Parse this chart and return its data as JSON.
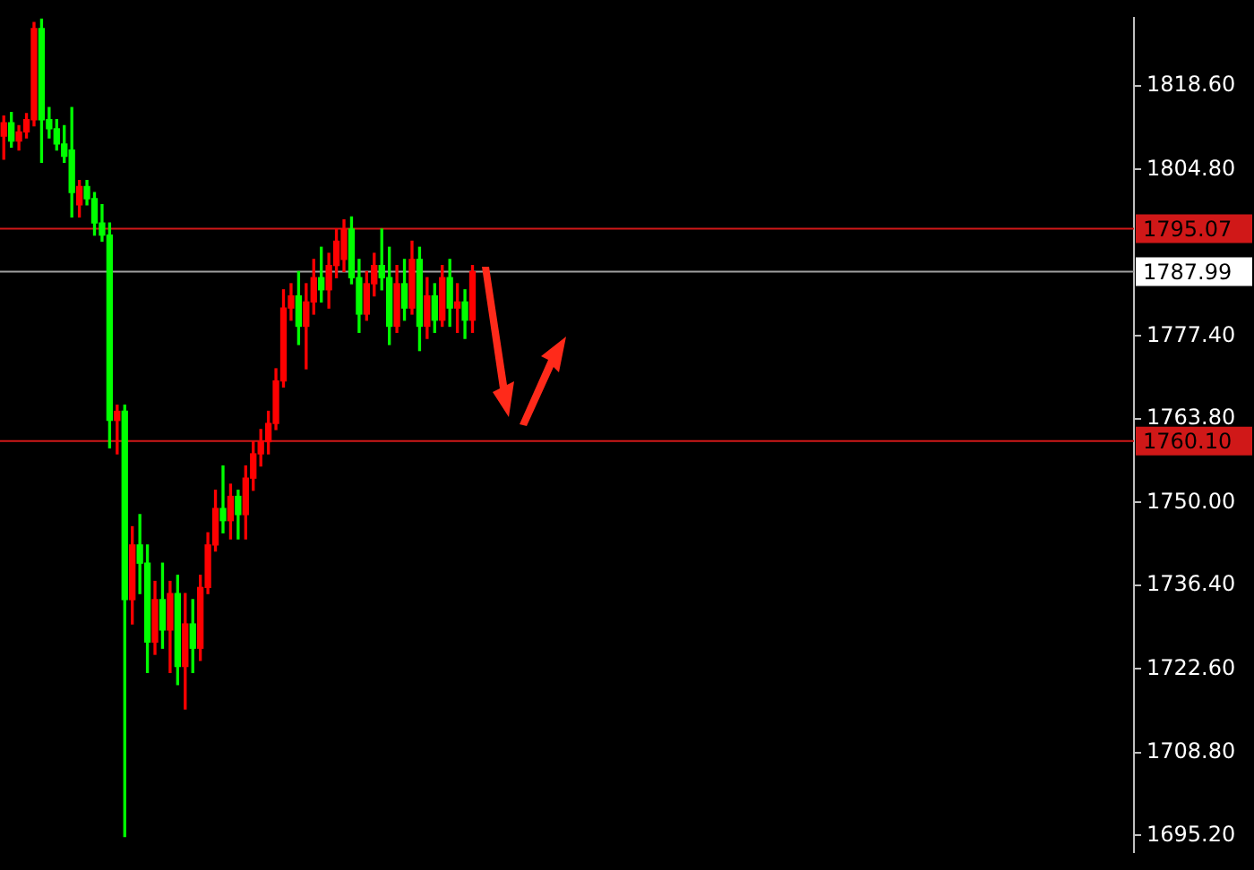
{
  "chart_data": {
    "type": "candlestick",
    "categories": [
      null,
      null,
      null,
      null,
      null,
      null,
      null,
      null,
      null,
      null,
      null,
      null,
      null,
      null,
      null,
      null,
      null,
      null,
      null,
      null,
      null,
      null,
      null,
      null,
      null,
      null,
      null,
      null,
      null,
      null,
      null,
      null,
      null,
      null,
      null,
      null,
      null,
      null,
      null,
      null,
      null,
      null,
      null,
      null,
      null,
      null,
      null,
      null,
      null,
      null,
      null,
      null,
      null,
      null,
      null,
      null,
      null,
      null,
      null,
      null,
      null,
      null,
      null,
      null,
      null,
      null,
      null,
      null,
      null,
      null,
      null,
      null,
      null,
      null,
      null,
      null,
      null,
      null,
      null,
      null,
      null,
      null,
      null,
      null,
      null,
      null,
      null,
      null,
      null,
      null,
      null,
      null,
      null,
      null,
      null,
      null,
      null,
      null,
      null,
      null,
      null,
      null,
      null,
      null,
      null,
      null,
      null,
      null,
      null,
      null,
      null,
      null,
      null,
      null,
      null,
      null,
      null,
      null,
      null,
      null,
      null,
      null,
      null,
      null,
      null,
      null,
      null,
      null,
      null,
      null,
      null,
      null,
      null,
      null,
      null,
      null,
      null,
      null,
      null,
      null,
      null,
      null,
      null,
      null,
      null,
      null,
      null,
      null,
      null,
      null
    ],
    "ohlc": [
      [
        1810.3,
        1813.6,
        1806.5,
        1812.5
      ],
      [
        1812.5,
        1814.2,
        1808.5,
        1809.5
      ],
      [
        1809.5,
        1812,
        1808,
        1811
      ],
      [
        1811,
        1814,
        1810,
        1813
      ],
      [
        1813,
        1829,
        1812,
        1828
      ],
      [
        1828,
        1829.6,
        1806,
        1813
      ],
      [
        1813,
        1815,
        1810,
        1811.5
      ],
      [
        1811.5,
        1813,
        1808,
        1809
      ],
      [
        1809,
        1812,
        1806,
        1807
      ],
      [
        1808,
        1815,
        1797,
        1801
      ],
      [
        1799,
        1803,
        1797,
        1802
      ],
      [
        1802,
        1803,
        1799,
        1800
      ],
      [
        1800,
        1801,
        1794,
        1796
      ],
      [
        1796,
        1799,
        1793,
        1794
      ],
      [
        1794,
        1796,
        1759,
        1763.5
      ],
      [
        1763.5,
        1766,
        1758,
        1765
      ],
      [
        1765,
        1766,
        1695,
        1734
      ],
      [
        1734,
        1746,
        1730,
        1743
      ],
      [
        1743,
        1748,
        1735,
        1740
      ],
      [
        1740,
        1743,
        1722,
        1727
      ],
      [
        1727,
        1737,
        1725,
        1734
      ],
      [
        1734,
        1740,
        1726,
        1729
      ],
      [
        1729,
        1737,
        1722,
        1735
      ],
      [
        1735,
        1738,
        1720,
        1723
      ],
      [
        1723,
        1735,
        1716,
        1730
      ],
      [
        1730,
        1734,
        1722,
        1726
      ],
      [
        1726,
        1738,
        1724,
        1736
      ],
      [
        1736,
        1745,
        1735,
        1743
      ],
      [
        1743,
        1752,
        1742,
        1749
      ],
      [
        1749,
        1756,
        1745,
        1747
      ],
      [
        1747,
        1753,
        1744,
        1751
      ],
      [
        1751,
        1752,
        1744,
        1748
      ],
      [
        1748,
        1756,
        1744,
        1754
      ],
      [
        1754,
        1760,
        1752,
        1758
      ],
      [
        1758,
        1762,
        1756,
        1760
      ],
      [
        1760,
        1765,
        1758,
        1763
      ],
      [
        1763,
        1772,
        1762,
        1770
      ],
      [
        1770,
        1785,
        1769,
        1782
      ],
      [
        1782,
        1786,
        1780,
        1784
      ],
      [
        1784,
        1788,
        1776,
        1779
      ],
      [
        1779,
        1786,
        1772,
        1783
      ],
      [
        1783,
        1790,
        1781,
        1787
      ],
      [
        1787,
        1792,
        1783,
        1785
      ],
      [
        1785,
        1791,
        1782,
        1789
      ],
      [
        1789,
        1795,
        1787,
        1793
      ],
      [
        1790,
        1796.5,
        1788,
        1795
      ],
      [
        1795,
        1797,
        1786,
        1787
      ],
      [
        1787,
        1790,
        1778,
        1781
      ],
      [
        1781,
        1788,
        1780,
        1786
      ],
      [
        1786,
        1791,
        1784,
        1789
      ],
      [
        1789,
        1795,
        1785,
        1787
      ],
      [
        1787,
        1792,
        1776,
        1779
      ],
      [
        1779,
        1789,
        1778,
        1786
      ],
      [
        1786,
        1790,
        1780,
        1782
      ],
      [
        1782,
        1793,
        1781,
        1790
      ],
      [
        1790,
        1792,
        1775,
        1779
      ],
      [
        1779,
        1787,
        1777,
        1784
      ],
      [
        1784,
        1786,
        1778,
        1780
      ],
      [
        1780,
        1789,
        1779,
        1787
      ],
      [
        1787,
        1790,
        1779,
        1782
      ],
      [
        1782,
        1786,
        1778,
        1783
      ],
      [
        1783,
        1785,
        1777,
        1780
      ],
      [
        1780,
        1789,
        1778,
        1787.99
      ],
      null,
      null,
      null,
      null,
      null,
      null,
      null,
      null,
      null,
      null,
      null,
      null,
      null,
      null,
      null,
      null,
      null,
      null,
      null,
      null,
      null,
      null,
      null,
      null,
      null,
      null,
      null,
      null,
      null,
      null,
      null,
      null,
      null,
      null,
      null,
      null,
      null,
      null,
      null,
      null,
      null,
      null,
      null,
      null,
      null,
      null,
      null,
      null,
      null,
      null,
      null,
      null,
      null,
      null,
      null,
      null,
      null,
      null,
      null,
      null,
      null,
      null,
      null,
      null,
      null,
      null,
      null,
      null,
      null,
      null,
      null,
      null,
      null,
      null,
      null,
      null,
      null,
      null,
      null,
      null,
      null,
      null,
      null,
      null,
      null,
      null,
      null
    ],
    "colors": [
      "#ff0000",
      "#00ff00",
      "#ff0000",
      "#ff0000",
      "#ff0000",
      "#00ff00",
      "#00ff00",
      "#00ff00",
      "#00ff00",
      "#00ff00",
      "#ff0000",
      "#00ff00",
      "#00ff00",
      "#00ff00",
      "#00ff00",
      "#ff0000",
      "#00ff00",
      "#ff0000",
      "#00ff00",
      "#00ff00",
      "#ff0000",
      "#00ff00",
      "#ff0000",
      "#00ff00",
      "#ff0000",
      "#00ff00",
      "#ff0000",
      "#ff0000",
      "#ff0000",
      "#00ff00",
      "#ff0000",
      "#00ff00",
      "#ff0000",
      "#ff0000",
      "#ff0000",
      "#ff0000",
      "#ff0000",
      "#ff0000",
      "#ff0000",
      "#00ff00",
      "#ff0000",
      "#ff0000",
      "#00ff00",
      "#ff0000",
      "#ff0000",
      "#ff0000",
      "#00ff00",
      "#00ff00",
      "#ff0000",
      "#ff0000",
      "#00ff00",
      "#00ff00",
      "#ff0000",
      "#00ff00",
      "#ff0000",
      "#00ff00",
      "#ff0000",
      "#00ff00",
      "#ff0000",
      "#00ff00",
      "#ff0000",
      "#00ff00",
      "#ff0000",
      null,
      null,
      null,
      null,
      null,
      null,
      null,
      null,
      null,
      null,
      null,
      null,
      null,
      null,
      null,
      null,
      null,
      null,
      null,
      null,
      null,
      null,
      null,
      null,
      null,
      null,
      null,
      null,
      null,
      null,
      null,
      null,
      null,
      null,
      null,
      null,
      null,
      null,
      null,
      null,
      null,
      null,
      null,
      null,
      null,
      null,
      null,
      null,
      null,
      null,
      null,
      null,
      null,
      null,
      null,
      null,
      null,
      null,
      null,
      null,
      null,
      null,
      null,
      null,
      null,
      null,
      null,
      null,
      null,
      null,
      null,
      null,
      null,
      null,
      null,
      null,
      null,
      null,
      null,
      null,
      null,
      null,
      null,
      null,
      null,
      null,
      null
    ],
    "ylim": [
      1692.5,
      1829.7
    ],
    "yticks": [
      {
        "value": 1695.2,
        "label": "1695.20"
      },
      {
        "value": 1708.8,
        "label": "1708.80"
      },
      {
        "value": 1722.6,
        "label": "1722.60"
      },
      {
        "value": 1736.4,
        "label": "1736.40"
      },
      {
        "value": 1750,
        "label": "1750.00"
      },
      {
        "value": 1763.8,
        "label": "1763.80"
      },
      {
        "value": 1777.4,
        "label": "1777.40"
      },
      {
        "value": 1804.8,
        "label": "1804.80"
      },
      {
        "value": 1818.6,
        "label": "1818.60"
      }
    ],
    "ref_lines": [
      {
        "axis": "y",
        "value": 1795.07,
        "label": "1795.07",
        "color": "#d01818"
      },
      {
        "axis": "y",
        "value": 1787.99,
        "label": "1787.99",
        "color": "#a0a0a0"
      },
      {
        "axis": "y",
        "value": 1760.1,
        "label": "1760.10",
        "color": "#d01818"
      }
    ]
  }
}
